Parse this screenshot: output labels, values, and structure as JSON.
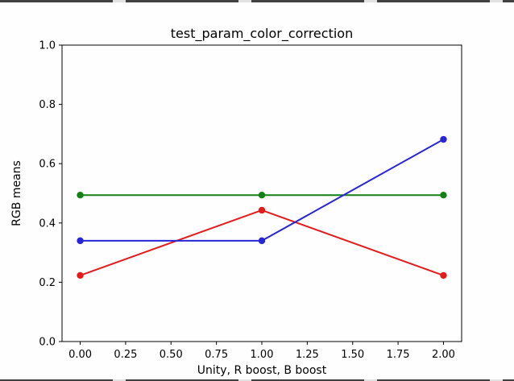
{
  "page": {
    "background": "#fefefe",
    "frame_color": "#000000",
    "text_color": "#000000"
  },
  "chart_data": {
    "type": "line",
    "title": "test_param_color_correction",
    "xlabel": "Unity, R boost, B boost",
    "ylabel": "RGB means",
    "x": [
      0,
      1,
      2
    ],
    "series": [
      {
        "name": "red",
        "color": "#e41b1b",
        "values": [
          0.223,
          0.443,
          0.223
        ]
      },
      {
        "name": "green",
        "color": "#128012",
        "values": [
          0.494,
          0.494,
          0.494
        ]
      },
      {
        "name": "blue",
        "color": "#2626d8",
        "values": [
          0.34,
          0.34,
          0.682
        ]
      }
    ],
    "marker": "circle",
    "grid": false,
    "legend": "none",
    "xlim": [
      -0.1,
      2.1
    ],
    "ylim": [
      0.0,
      1.0
    ],
    "xticks": [
      0.0,
      0.25,
      0.5,
      0.75,
      1.0,
      1.25,
      1.5,
      1.75,
      2.0
    ],
    "xtick_labels": [
      "0.00",
      "0.25",
      "0.50",
      "0.75",
      "1.00",
      "1.25",
      "1.50",
      "1.75",
      "2.00"
    ],
    "yticks": [
      0.0,
      0.2,
      0.4,
      0.6,
      0.8,
      1.0
    ],
    "ytick_labels": [
      "0.0",
      "0.2",
      "0.4",
      "0.6",
      "0.8",
      "1.0"
    ]
  }
}
